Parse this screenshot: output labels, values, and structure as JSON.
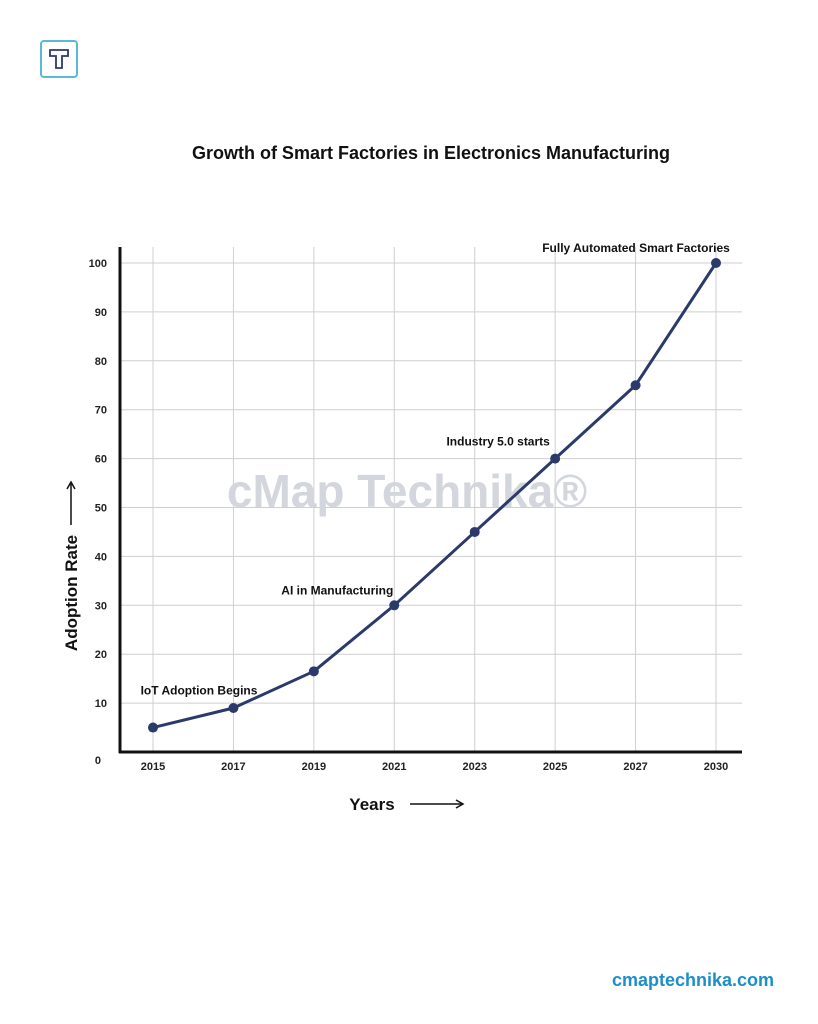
{
  "logo_text": "T",
  "website": "cmaptechnika.com",
  "watermark": "cMap Technika®",
  "colors": {
    "line": "#2b3a6b",
    "grid": "#cfcfcf",
    "axis": "#111111",
    "watermark": "#d3d6dc",
    "site": "#1c8fc8"
  },
  "chart_data": {
    "type": "line",
    "title": "Growth  of Smart Factories in Electronics Manufacturing",
    "xlabel": "Years",
    "ylabel": "Adoption Rate",
    "categories": [
      "2015",
      "2017",
      "2019",
      "2021",
      "2023",
      "2025",
      "2027",
      "2030"
    ],
    "values": [
      5,
      9,
      16.5,
      30,
      45,
      60,
      75,
      100
    ],
    "yticks": [
      0,
      10,
      20,
      30,
      40,
      50,
      60,
      70,
      80,
      90,
      100
    ],
    "ylim": [
      0,
      100
    ],
    "grid": true,
    "annotations": [
      {
        "text": "IoT Adoption Begins",
        "x": "2015"
      },
      {
        "text": "AI in Manufacturing",
        "x": "2021"
      },
      {
        "text": "Industry 5.0 starts",
        "x": "2025"
      },
      {
        "text": "Fully Automated Smart Factories",
        "x": "2030"
      }
    ]
  }
}
